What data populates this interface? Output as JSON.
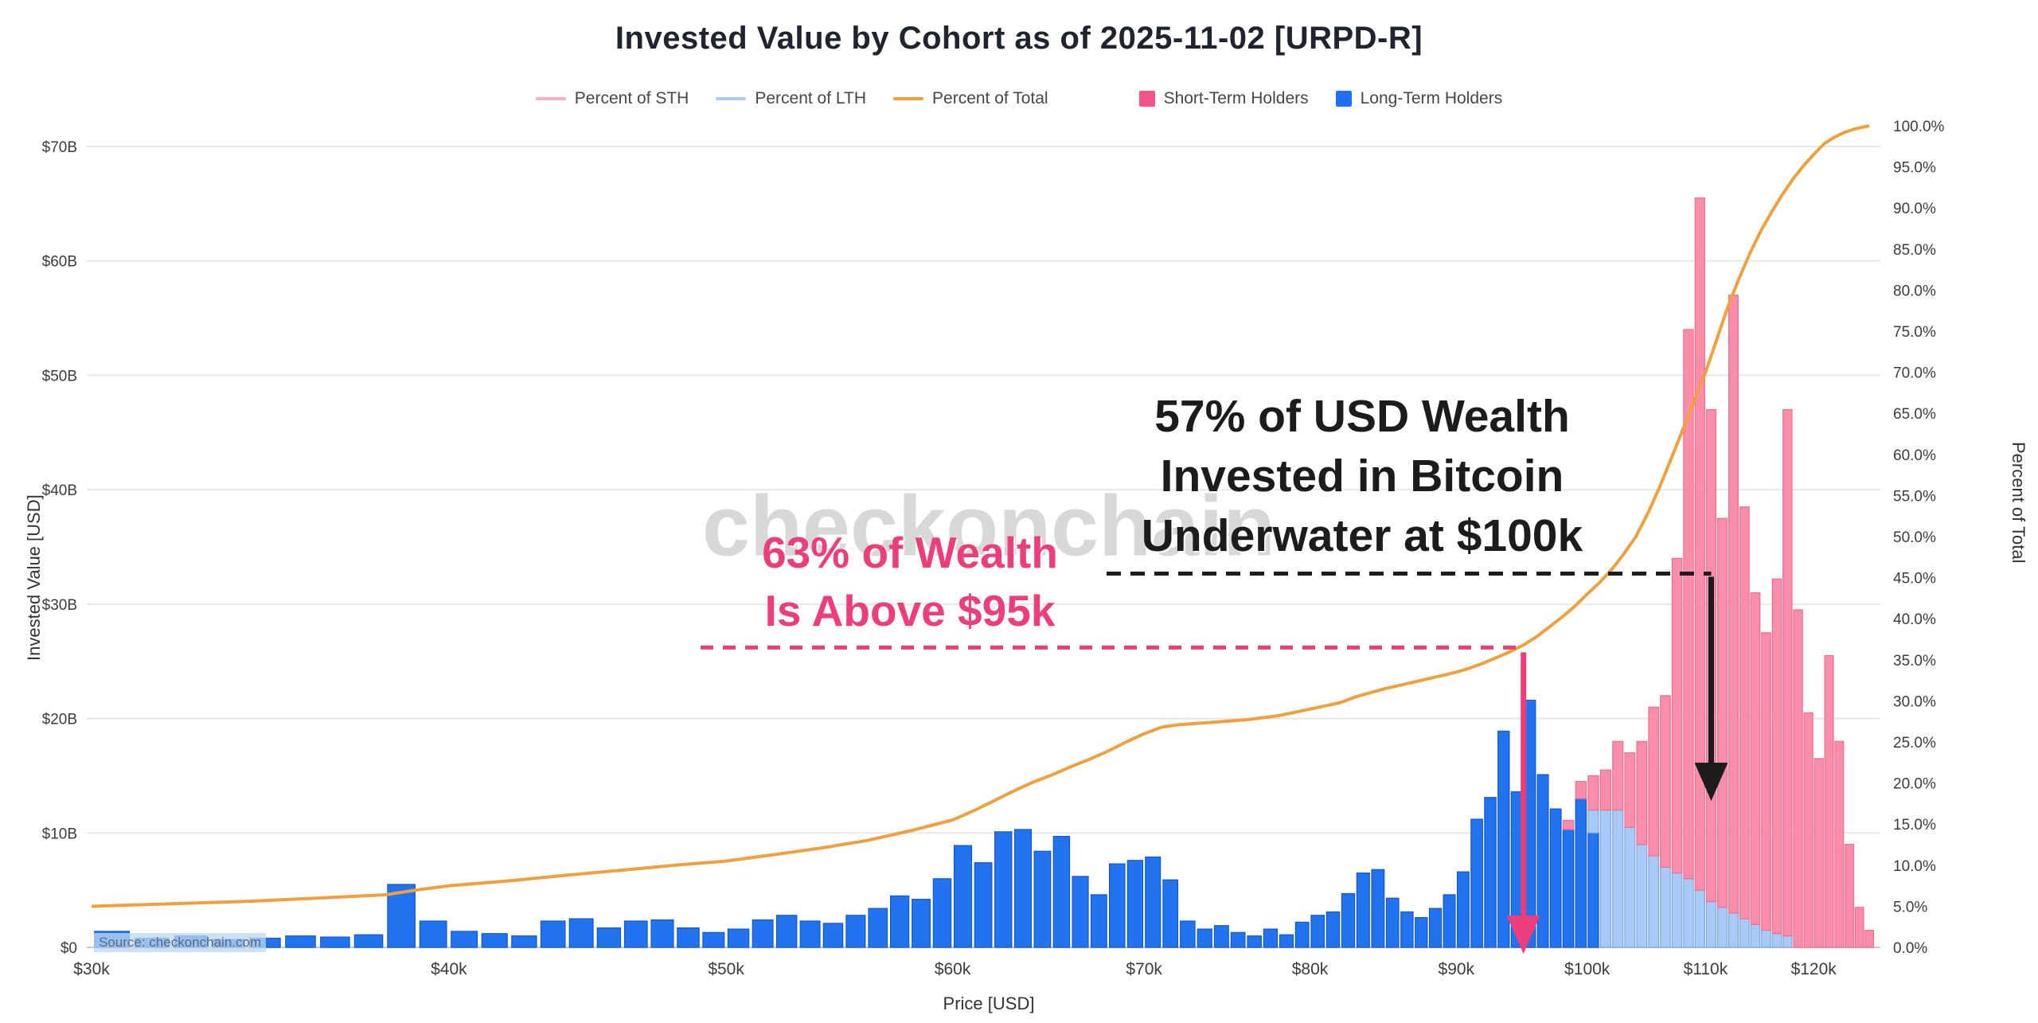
{
  "title": "Invested Value by Cohort as of 2025-11-02 [URPD-R]",
  "watermark": "checkonchain",
  "source": "Source: checkonchain.com",
  "legend": {
    "line_items": [
      {
        "label": "Percent of STH",
        "color": "#f7b0c1"
      },
      {
        "label": "Percent of LTH",
        "color": "#abcbf5"
      },
      {
        "label": "Percent of Total",
        "color": "#f0a03c"
      }
    ],
    "swatch_items": [
      {
        "label": "Short-Term Holders",
        "color": "#f2548a"
      },
      {
        "label": "Long-Term Holders",
        "color": "#1f6ff2"
      }
    ]
  },
  "annotations": {
    "wealth_above": {
      "lines": [
        "63% of Wealth",
        "Is Above $95k"
      ],
      "color": "#ed3d7b",
      "dashed_line_percent": 36.5,
      "arrow_price_usd": 95000
    },
    "underwater": {
      "lines": [
        "57% of USD Wealth",
        "Invested in Bitcoin",
        "Underwater at $100k"
      ],
      "color": "#1c1c1c",
      "dashed_line_percent": 45.5,
      "arrow_price_usd": 110500
    }
  },
  "chart_data": {
    "type": "bar",
    "title": "Invested Value by Cohort as of 2025-11-02 [URPD-R]",
    "value_unit": "USD billions",
    "x_axis": {
      "label": "Price [USD]",
      "scale": "log",
      "min_price_k": 30,
      "max_price_k": 126,
      "ticks": [
        {
          "value": 30,
          "label": "$30k"
        },
        {
          "value": 40,
          "label": "$40k"
        },
        {
          "value": 50,
          "label": "$50k"
        },
        {
          "value": 60,
          "label": "$60k"
        },
        {
          "value": 70,
          "label": "$70k"
        },
        {
          "value": 80,
          "label": "$80k"
        },
        {
          "value": 90,
          "label": "$90k"
        },
        {
          "value": 100,
          "label": "$100k"
        },
        {
          "value": 110,
          "label": "$110k"
        },
        {
          "value": 120,
          "label": "$120k"
        }
      ]
    },
    "y_left": {
      "label": "Invested Value [USD]",
      "min": 0,
      "max_billions": 70,
      "ticks": [
        {
          "value": 0,
          "label": "$0"
        },
        {
          "value": 10,
          "label": "$10B"
        },
        {
          "value": 20,
          "label": "$20B"
        },
        {
          "value": 30,
          "label": "$30B"
        },
        {
          "value": 40,
          "label": "$40B"
        },
        {
          "value": 50,
          "label": "$50B"
        },
        {
          "value": 60,
          "label": "$60B"
        },
        {
          "value": 70,
          "label": "$70B"
        }
      ]
    },
    "y_right": {
      "label": "Percent of Total",
      "min": 0,
      "max": 100,
      "ticks": [
        {
          "value": 0,
          "label": "0.0%"
        },
        {
          "value": 5,
          "label": "5.0%"
        },
        {
          "value": 10,
          "label": "10.0%"
        },
        {
          "value": 15,
          "label": "15.0%"
        },
        {
          "value": 20,
          "label": "20.0%"
        },
        {
          "value": 25,
          "label": "25.0%"
        },
        {
          "value": 30,
          "label": "30.0%"
        },
        {
          "value": 35,
          "label": "35.0%"
        },
        {
          "value": 40,
          "label": "40.0%"
        },
        {
          "value": 45,
          "label": "45.0%"
        },
        {
          "value": 50,
          "label": "50.0%"
        },
        {
          "value": 55,
          "label": "55.0%"
        },
        {
          "value": 60,
          "label": "60.0%"
        },
        {
          "value": 65,
          "label": "65.0%"
        },
        {
          "value": 70,
          "label": "70.0%"
        },
        {
          "value": 75,
          "label": "75.0%"
        },
        {
          "value": 80,
          "label": "80.0%"
        },
        {
          "value": 85,
          "label": "85.0%"
        },
        {
          "value": 90,
          "label": "90.0%"
        },
        {
          "value": 95,
          "label": "95.0%"
        },
        {
          "value": 100,
          "label": "100.0%"
        }
      ]
    },
    "series_colors": {
      "lth": "#2273f0",
      "lth_light": "#a9c9f7",
      "sth": "#f98daa",
      "percent_of_total": "#f0a03c"
    },
    "bars": [
      {
        "p": 30.5,
        "lth": 1.4
      },
      {
        "p": 31.5,
        "lth": 0.8
      },
      {
        "p": 32.5,
        "lth": 1.0
      },
      {
        "p": 33.5,
        "lth": 0.7
      },
      {
        "p": 34.5,
        "lth": 0.8
      },
      {
        "p": 35.5,
        "lth": 1.0
      },
      {
        "p": 36.5,
        "lth": 0.9
      },
      {
        "p": 37.5,
        "lth": 1.1
      },
      {
        "p": 38.5,
        "lth": 5.5
      },
      {
        "p": 39.5,
        "lth": 2.3
      },
      {
        "p": 40.5,
        "lth": 1.4
      },
      {
        "p": 41.5,
        "lth": 1.2
      },
      {
        "p": 42.5,
        "lth": 1.0
      },
      {
        "p": 43.5,
        "lth": 2.3
      },
      {
        "p": 44.5,
        "lth": 2.5
      },
      {
        "p": 45.5,
        "lth": 1.7
      },
      {
        "p": 46.5,
        "lth": 2.3
      },
      {
        "p": 47.5,
        "lth": 2.4
      },
      {
        "p": 48.5,
        "lth": 1.7
      },
      {
        "p": 49.5,
        "lth": 1.3
      },
      {
        "p": 50.5,
        "lth": 1.6
      },
      {
        "p": 51.5,
        "lth": 2.4
      },
      {
        "p": 52.5,
        "lth": 2.8
      },
      {
        "p": 53.5,
        "lth": 2.3
      },
      {
        "p": 54.5,
        "lth": 2.1
      },
      {
        "p": 55.5,
        "lth": 2.8
      },
      {
        "p": 56.5,
        "lth": 3.4
      },
      {
        "p": 57.5,
        "lth": 4.5
      },
      {
        "p": 58.5,
        "lth": 4.2
      },
      {
        "p": 59.5,
        "lth": 6.0
      },
      {
        "p": 60.5,
        "lth": 8.9
      },
      {
        "p": 61.5,
        "lth": 7.4
      },
      {
        "p": 62.5,
        "lth": 10.1
      },
      {
        "p": 63.5,
        "lth": 10.3
      },
      {
        "p": 64.5,
        "lth": 8.4
      },
      {
        "p": 65.5,
        "lth": 9.7
      },
      {
        "p": 66.5,
        "lth": 6.2
      },
      {
        "p": 67.5,
        "lth": 4.6
      },
      {
        "p": 68.5,
        "lth": 7.3
      },
      {
        "p": 69.5,
        "lth": 7.6
      },
      {
        "p": 70.5,
        "lth": 7.9
      },
      {
        "p": 71.5,
        "lth": 5.9
      },
      {
        "p": 72.5,
        "lth": 2.3
      },
      {
        "p": 73.5,
        "lth": 1.6
      },
      {
        "p": 74.5,
        "lth": 1.9
      },
      {
        "p": 75.5,
        "lth": 1.3
      },
      {
        "p": 76.5,
        "lth": 1.0
      },
      {
        "p": 77.5,
        "lth": 1.6
      },
      {
        "p": 78.5,
        "lth": 1.1
      },
      {
        "p": 79.5,
        "lth": 2.2
      },
      {
        "p": 80.5,
        "lth": 2.8
      },
      {
        "p": 81.5,
        "lth": 3.1
      },
      {
        "p": 82.5,
        "lth": 4.7
      },
      {
        "p": 83.5,
        "lth": 6.5
      },
      {
        "p": 84.5,
        "lth": 6.8
      },
      {
        "p": 85.5,
        "lth": 4.3
      },
      {
        "p": 86.5,
        "lth": 3.1
      },
      {
        "p": 87.5,
        "lth": 2.6
      },
      {
        "p": 88.5,
        "lth": 3.4
      },
      {
        "p": 89.5,
        "lth": 4.6
      },
      {
        "p": 90.5,
        "lth": 6.6
      },
      {
        "p": 91.5,
        "lth": 11.2
      },
      {
        "p": 92.5,
        "lth": 13.1
      },
      {
        "p": 93.5,
        "lth": 18.9
      },
      {
        "p": 94.5,
        "lth": 13.6
      },
      {
        "p": 95.5,
        "lth": 21.6
      },
      {
        "p": 96.5,
        "lth": 15.1
      },
      {
        "p": 97.5,
        "lth": 12.1
      },
      {
        "p": 98.5,
        "lth": 10.3,
        "sth": 0.8
      },
      {
        "p": 99.5,
        "lth": 13.0,
        "sth": 1.5
      },
      {
        "p": 100.5,
        "lth": 10.0,
        "lthl": 2.0,
        "sth": 3.0
      },
      {
        "p": 101.5,
        "lthl": 12.0,
        "sth": 3.5
      },
      {
        "p": 102.5,
        "lthl": 12.0,
        "sth": 6.0
      },
      {
        "p": 103.5,
        "lthl": 10.5,
        "sth": 6.5
      },
      {
        "p": 104.5,
        "lthl": 9.0,
        "sth": 9.0
      },
      {
        "p": 105.5,
        "lthl": 8.0,
        "sth": 13.0
      },
      {
        "p": 106.5,
        "lthl": 7.0,
        "sth": 15.0
      },
      {
        "p": 107.5,
        "lthl": 6.5,
        "sth": 27.5
      },
      {
        "p": 108.5,
        "lthl": 6.0,
        "sth": 48.0
      },
      {
        "p": 109.5,
        "lthl": 5.0,
        "sth": 60.5
      },
      {
        "p": 110.5,
        "lthl": 4.0,
        "sth": 43.0
      },
      {
        "p": 111.5,
        "lthl": 3.5,
        "sth": 34.0
      },
      {
        "p": 112.5,
        "lthl": 3.0,
        "sth": 54.0
      },
      {
        "p": 113.5,
        "lthl": 2.5,
        "sth": 36.0
      },
      {
        "p": 114.5,
        "lthl": 2.0,
        "sth": 29.0
      },
      {
        "p": 115.5,
        "lthl": 1.5,
        "sth": 26.0
      },
      {
        "p": 116.5,
        "lthl": 1.2,
        "sth": 31.0
      },
      {
        "p": 117.5,
        "lthl": 1.0,
        "sth": 46.0
      },
      {
        "p": 118.5,
        "sth": 29.5
      },
      {
        "p": 119.5,
        "sth": 20.5
      },
      {
        "p": 120.5,
        "sth": 16.5
      },
      {
        "p": 121.5,
        "sth": 25.5
      },
      {
        "p": 122.5,
        "sth": 18.0
      },
      {
        "p": 123.5,
        "sth": 9.0
      },
      {
        "p": 124.5,
        "sth": 3.5
      },
      {
        "p": 125.5,
        "sth": 1.5
      }
    ],
    "percent_of_total_line": [
      [
        30,
        5
      ],
      [
        32,
        5.3
      ],
      [
        34,
        5.6
      ],
      [
        36,
        6
      ],
      [
        38,
        6.4
      ],
      [
        39,
        7
      ],
      [
        40,
        7.5
      ],
      [
        42,
        8.1
      ],
      [
        44,
        8.8
      ],
      [
        46,
        9.4
      ],
      [
        48,
        10
      ],
      [
        50,
        10.5
      ],
      [
        52,
        11.3
      ],
      [
        54,
        12.1
      ],
      [
        56,
        13
      ],
      [
        58,
        14.2
      ],
      [
        60,
        15.5
      ],
      [
        61,
        16.6
      ],
      [
        62,
        17.8
      ],
      [
        63,
        19
      ],
      [
        64,
        20.1
      ],
      [
        65,
        21
      ],
      [
        66,
        22
      ],
      [
        67,
        22.9
      ],
      [
        68,
        23.9
      ],
      [
        69,
        25
      ],
      [
        70,
        26
      ],
      [
        71,
        26.8
      ],
      [
        72,
        27.1
      ],
      [
        74,
        27.4
      ],
      [
        76,
        27.7
      ],
      [
        78,
        28.2
      ],
      [
        80,
        29
      ],
      [
        82,
        29.8
      ],
      [
        83,
        30.5
      ],
      [
        84,
        31
      ],
      [
        85,
        31.5
      ],
      [
        86,
        31.9
      ],
      [
        87,
        32.3
      ],
      [
        88,
        32.7
      ],
      [
        89,
        33.1
      ],
      [
        90,
        33.5
      ],
      [
        91,
        34
      ],
      [
        92,
        34.6
      ],
      [
        93,
        35.3
      ],
      [
        94,
        36
      ],
      [
        95,
        36.8
      ],
      [
        96,
        37.8
      ],
      [
        97,
        39
      ],
      [
        98,
        40.2
      ],
      [
        99,
        41.5
      ],
      [
        100,
        43
      ],
      [
        101,
        44.4
      ],
      [
        102,
        46
      ],
      [
        103,
        47.9
      ],
      [
        104,
        50
      ],
      [
        105,
        52.8
      ],
      [
        106,
        56
      ],
      [
        107,
        59.5
      ],
      [
        108,
        63
      ],
      [
        109,
        66.5
      ],
      [
        110,
        70
      ],
      [
        111,
        74
      ],
      [
        112,
        78
      ],
      [
        113,
        81.4
      ],
      [
        114,
        84.5
      ],
      [
        115,
        87.2
      ],
      [
        116,
        89.5
      ],
      [
        117,
        91.6
      ],
      [
        118,
        93.5
      ],
      [
        119,
        95.1
      ],
      [
        120,
        96.5
      ],
      [
        121,
        97.8
      ],
      [
        122,
        98.6
      ],
      [
        123,
        99.2
      ],
      [
        124,
        99.6
      ],
      [
        125.5,
        100
      ]
    ]
  }
}
